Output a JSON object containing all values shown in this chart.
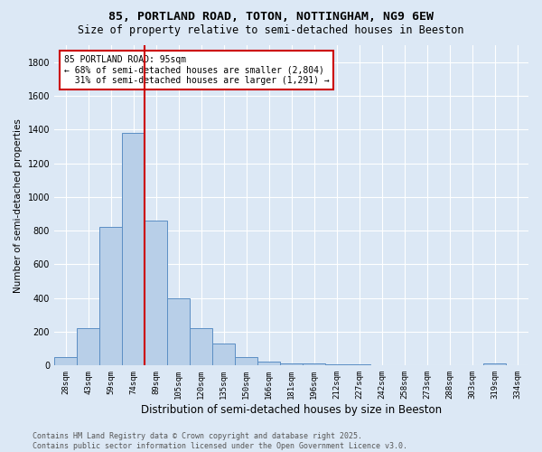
{
  "title1": "85, PORTLAND ROAD, TOTON, NOTTINGHAM, NG9 6EW",
  "title2": "Size of property relative to semi-detached houses in Beeston",
  "xlabel": "Distribution of semi-detached houses by size in Beeston",
  "ylabel": "Number of semi-detached properties",
  "categories": [
    "28sqm",
    "43sqm",
    "59sqm",
    "74sqm",
    "89sqm",
    "105sqm",
    "120sqm",
    "135sqm",
    "150sqm",
    "166sqm",
    "181sqm",
    "196sqm",
    "212sqm",
    "227sqm",
    "242sqm",
    "258sqm",
    "273sqm",
    "288sqm",
    "303sqm",
    "319sqm",
    "334sqm"
  ],
  "values": [
    50,
    220,
    820,
    1380,
    860,
    400,
    220,
    130,
    50,
    25,
    15,
    10,
    8,
    5,
    4,
    3,
    2,
    1,
    1,
    10,
    0
  ],
  "bar_color": "#b8cfe8",
  "bar_edge_color": "#5b8ec4",
  "vline_x": 3.5,
  "vline_color": "#cc0000",
  "annotation_text": "85 PORTLAND ROAD: 95sqm\n← 68% of semi-detached houses are smaller (2,804)\n  31% of semi-detached houses are larger (1,291) →",
  "annotation_box_color": "#ffffff",
  "annotation_box_edge": "#cc0000",
  "footer": "Contains HM Land Registry data © Crown copyright and database right 2025.\nContains public sector information licensed under the Open Government Licence v3.0.",
  "ylim": [
    0,
    1900
  ],
  "bg_color": "#dce8f5",
  "plot_bg_color": "#dce8f5",
  "grid_color": "#ffffff",
  "title1_fontsize": 9.5,
  "title2_fontsize": 8.5,
  "xlabel_fontsize": 8.5,
  "ylabel_fontsize": 7.5,
  "tick_fontsize": 6.5,
  "footer_fontsize": 6,
  "annot_fontsize": 7,
  "yticks": [
    0,
    200,
    400,
    600,
    800,
    1000,
    1200,
    1400,
    1600,
    1800
  ]
}
